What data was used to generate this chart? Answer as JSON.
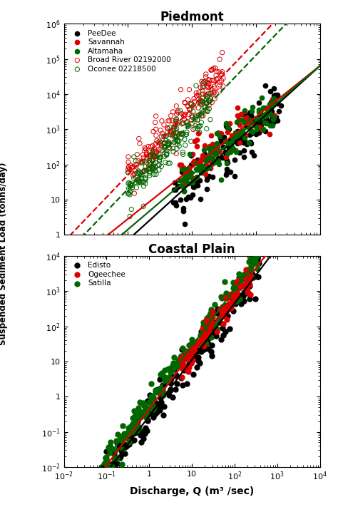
{
  "title_top": "Piedmont",
  "title_bottom": "Coastal Plain",
  "ylabel": "Suspended Sediment Load (tonns/day)",
  "xlabel": "Discharge, Q (m³ /sec)",
  "top": {
    "xlim": [
      1,
      10000
    ],
    "ylim": [
      1.0,
      1000000.0
    ],
    "fit_lines": [
      {
        "color": "black",
        "style": "solid",
        "slope": 1.65,
        "intercept": -1.8
      },
      {
        "color": "#dd0000",
        "style": "solid",
        "slope": 1.45,
        "intercept": -1.0
      },
      {
        "color": "#006600",
        "style": "solid",
        "slope": 1.55,
        "intercept": -1.4
      },
      {
        "color": "#dd0000",
        "style": "dashed",
        "slope": 1.9,
        "intercept": -0.2
      },
      {
        "color": "#006600",
        "style": "dashed",
        "slope": 1.9,
        "intercept": -0.6
      }
    ]
  },
  "bottom": {
    "xlim": [
      0.01,
      10000
    ],
    "ylim": [
      0.01,
      10000.0
    ],
    "fit_lines": [
      {
        "color": "black",
        "style": "solid",
        "slope": 1.6,
        "intercept": -0.55
      },
      {
        "color": "#dd0000",
        "style": "solid",
        "slope": 1.6,
        "intercept": -0.35
      },
      {
        "color": "#006600",
        "style": "solid",
        "slope": 1.6,
        "intercept": -0.15
      }
    ]
  }
}
